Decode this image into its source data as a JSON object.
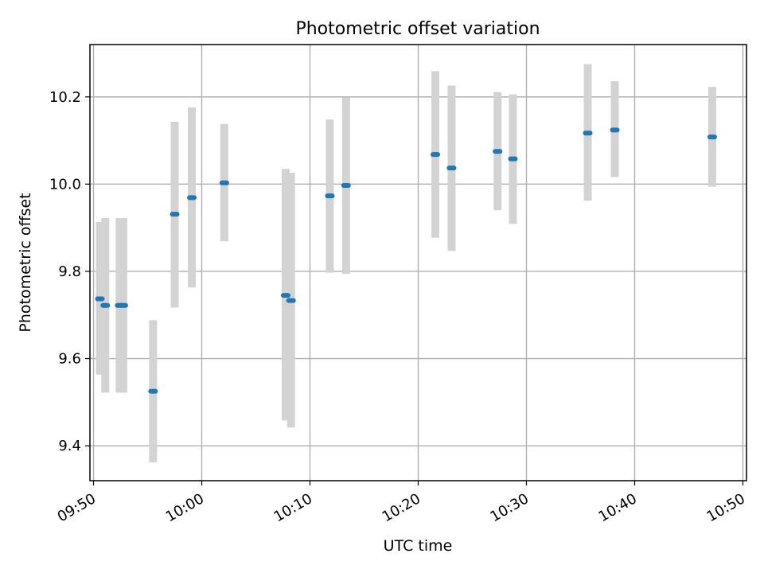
{
  "chart_data": {
    "type": "scatter",
    "title": "Photometric offset variation",
    "xlabel": "UTC time",
    "ylabel": "Photometric offset",
    "xlim": [
      "09:49:40",
      "10:50:20"
    ],
    "ylim": [
      9.32,
      10.32
    ],
    "x_ticks": [
      "09:50",
      "10:00",
      "10:10",
      "10:20",
      "10:30",
      "10:40",
      "10:50"
    ],
    "y_ticks": [
      "9.4",
      "9.6",
      "9.8",
      "10.0",
      "10.2"
    ],
    "grid": true,
    "colors": {
      "marker": "#1f77b4",
      "errorbar": "#d3d3d3",
      "grid": "#b0b0b0",
      "axis": "#000000"
    },
    "points": [
      {
        "x": "09:50:35",
        "y": 9.737,
        "yerr_low": 9.563,
        "yerr_high": 9.913
      },
      {
        "x": "09:51:05",
        "y": 9.722,
        "yerr_low": 9.522,
        "yerr_high": 9.922
      },
      {
        "x": "09:52:25",
        "y": 9.722,
        "yerr_low": 9.522,
        "yerr_high": 9.922
      },
      {
        "x": "09:52:45",
        "y": 9.722,
        "yerr_low": 9.522,
        "yerr_high": 9.922
      },
      {
        "x": "09:55:30",
        "y": 9.525,
        "yerr_low": 9.362,
        "yerr_high": 9.688
      },
      {
        "x": "09:57:30",
        "y": 9.931,
        "yerr_low": 9.717,
        "yerr_high": 10.143
      },
      {
        "x": "09:59:05",
        "y": 9.969,
        "yerr_low": 9.763,
        "yerr_high": 10.176
      },
      {
        "x": "10:02:05",
        "y": 10.003,
        "yerr_low": 9.869,
        "yerr_high": 10.138
      },
      {
        "x": "10:07:45",
        "y": 9.745,
        "yerr_low": 9.458,
        "yerr_high": 10.035
      },
      {
        "x": "10:08:15",
        "y": 9.733,
        "yerr_low": 9.442,
        "yerr_high": 10.026
      },
      {
        "x": "10:11:50",
        "y": 9.973,
        "yerr_low": 9.797,
        "yerr_high": 10.148
      },
      {
        "x": "10:13:20",
        "y": 9.997,
        "yerr_low": 9.794,
        "yerr_high": 10.199
      },
      {
        "x": "10:21:35",
        "y": 10.068,
        "yerr_low": 9.877,
        "yerr_high": 10.259
      },
      {
        "x": "10:23:05",
        "y": 10.037,
        "yerr_low": 9.847,
        "yerr_high": 10.226
      },
      {
        "x": "10:27:20",
        "y": 10.075,
        "yerr_low": 9.94,
        "yerr_high": 10.211
      },
      {
        "x": "10:28:45",
        "y": 10.058,
        "yerr_low": 9.909,
        "yerr_high": 10.206
      },
      {
        "x": "10:35:40",
        "y": 10.117,
        "yerr_low": 9.962,
        "yerr_high": 10.275
      },
      {
        "x": "10:38:10",
        "y": 10.124,
        "yerr_low": 10.016,
        "yerr_high": 10.236
      },
      {
        "x": "10:47:10",
        "y": 10.108,
        "yerr_low": 9.994,
        "yerr_high": 10.223
      }
    ]
  }
}
